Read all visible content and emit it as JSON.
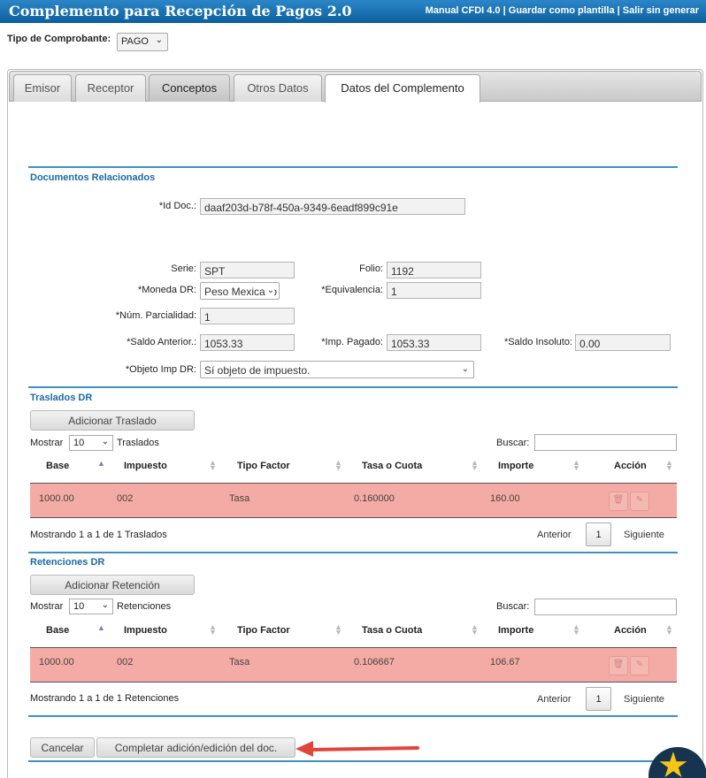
{
  "header": {
    "title": "Complemento para Recepción de Pagos  2.0",
    "link_manual": "Manual CFDI 4.0",
    "link_plantilla": "Guardar como plantilla",
    "link_salir": "Salir sin generar",
    "separator": " | "
  },
  "tipo": {
    "label": "Tipo de Comprobante:",
    "value": "PAGO"
  },
  "tabs": [
    "Emisor",
    "Receptor",
    "Conceptos",
    "Otros Datos",
    "Datos del Complemento"
  ],
  "docs": {
    "title": "Documentos Relacionados",
    "id_label": "*Id Doc.:",
    "id_value": "daaf203d-b78f-450a-9349-6eadf899c91e",
    "serie_label": "Serie:",
    "serie_value": "SPT",
    "folio_label": "Folio:",
    "folio_value": "1192",
    "moneda_label": "*Moneda DR:",
    "moneda_value": "Peso Mexicano",
    "equiv_label": "*Equivalencia:",
    "equiv_value": "1",
    "parc_label": "*Núm. Parcialidad:",
    "parc_value": "1",
    "saldo_ant_label": "*Saldo Anterior.:",
    "saldo_ant_value": "1053.33",
    "imp_pagado_label": "*Imp. Pagado:",
    "imp_pagado_value": "1053.33",
    "saldo_ins_label": "*Saldo Insoluto:",
    "saldo_ins_value": "0.00",
    "objeto_label": "*Objeto Imp DR:",
    "objeto_value": "Sí objeto de impuesto."
  },
  "columns": [
    "Base",
    "Impuesto",
    "Tipo Factor",
    "Tasa o Cuota",
    "Importe",
    "Acción"
  ],
  "traslados": {
    "title": "Traslados DR",
    "add_button": "Adicionar Traslado",
    "mostrar": "Mostrar",
    "length": "10",
    "suffix": "Traslados",
    "buscar": "Buscar:",
    "row": {
      "base": "1000.00",
      "impuesto": "002",
      "tipo": "Tasa",
      "tasa": "0.160000",
      "importe": "160.00"
    },
    "info": "Mostrando 1 a 1 de 1 Traslados",
    "prev": "Anterior",
    "page": "1",
    "next": "Siguiente"
  },
  "retenciones": {
    "title": "Retenciones DR",
    "add_button": "Adicionar Retención",
    "mostrar": "Mostrar",
    "length": "10",
    "suffix": "Retenciones",
    "buscar": "Buscar:",
    "row": {
      "base": "1000.00",
      "impuesto": "002",
      "tipo": "Tasa",
      "tasa": "0.106667",
      "importe": "106.67"
    },
    "info": "Mostrando 1 a 1 de 1 Retenciones",
    "prev": "Anterior",
    "page": "1",
    "next": "Siguiente"
  },
  "footer": {
    "cancel": "Cancelar",
    "complete": "Completar adición/edición del doc."
  },
  "icons": {
    "delete": "trash-icon",
    "edit": "pencil-icon",
    "favorite": "star-icon"
  },
  "colors": {
    "header": "#1a72b3",
    "accent": "#3d8fc4",
    "row_error": "#f5aba5",
    "arrow": "#e2453b"
  }
}
